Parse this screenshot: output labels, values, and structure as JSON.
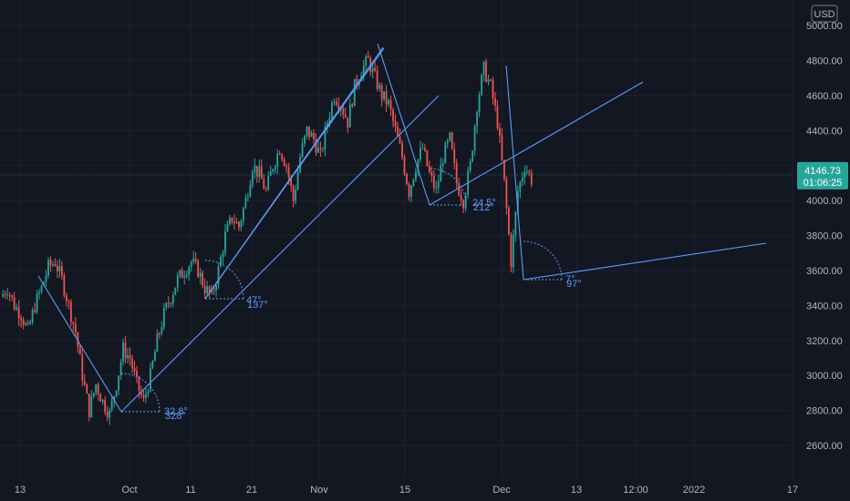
{
  "chart_data": {
    "type": "candlestick",
    "currency_badge": "USD",
    "price_axis": {
      "ticks": [
        "2600.00",
        "2800.00",
        "3000.00",
        "3200.00",
        "3400.00",
        "3600.00",
        "3800.00",
        "4000.00",
        "4200.00",
        "4400.00",
        "4600.00",
        "4800.00",
        "5000.00"
      ],
      "values": [
        2600,
        2800,
        3000,
        3200,
        3400,
        3600,
        3800,
        4000,
        4200,
        4400,
        4600,
        4800,
        5000
      ],
      "ylim": [
        2470,
        5060
      ]
    },
    "time_axis": {
      "labels": [
        "13",
        "Oct",
        "11",
        "21",
        "Nov",
        "15",
        "Dec",
        "13",
        "12:00",
        "2022",
        "17"
      ]
    },
    "last_price": {
      "value": 4146.73,
      "label": "4146.73",
      "countdown": "01:06:25",
      "color": "#26a69a"
    },
    "colors": {
      "background": "#131722",
      "up": "#26a69a",
      "down": "#ef5350",
      "drawing": "#5b9cf6",
      "axis_text": "#b2b5be"
    },
    "trend_angle_annotations": [
      {
        "label": "32.8°",
        "alt_label": "328°"
      },
      {
        "label": "47°",
        "alt_label": "137°"
      },
      {
        "label": "24.5°",
        "alt_label": "212°"
      },
      {
        "label": "7°",
        "alt_label": "97°"
      }
    ],
    "price_path": [
      [
        3450,
        0
      ],
      [
        3500,
        1
      ],
      [
        3400,
        2
      ],
      [
        3350,
        3
      ],
      [
        3250,
        4
      ],
      [
        3400,
        5
      ],
      [
        3500,
        6
      ],
      [
        3620,
        7
      ],
      [
        3650,
        8
      ],
      [
        3550,
        9
      ],
      [
        3400,
        10
      ],
      [
        3250,
        11
      ],
      [
        3000,
        12
      ],
      [
        2800,
        13
      ],
      [
        2950,
        14
      ],
      [
        2850,
        15
      ],
      [
        2780,
        16
      ],
      [
        2950,
        17
      ],
      [
        3150,
        18
      ],
      [
        3100,
        19
      ],
      [
        2950,
        20
      ],
      [
        2850,
        21
      ],
      [
        3000,
        22
      ],
      [
        3200,
        23
      ],
      [
        3350,
        24
      ],
      [
        3450,
        25
      ],
      [
        3550,
        26
      ],
      [
        3600,
        27
      ],
      [
        3650,
        28
      ],
      [
        3600,
        29
      ],
      [
        3500,
        30
      ],
      [
        3450,
        31
      ],
      [
        3600,
        32
      ],
      [
        3800,
        33
      ],
      [
        3900,
        34
      ],
      [
        3850,
        35
      ],
      [
        4000,
        36
      ],
      [
        4200,
        37
      ],
      [
        4150,
        38
      ],
      [
        4050,
        39
      ],
      [
        4200,
        40
      ],
      [
        4300,
        41
      ],
      [
        4200,
        42
      ],
      [
        4000,
        43
      ],
      [
        4250,
        44
      ],
      [
        4400,
        45
      ],
      [
        4350,
        46
      ],
      [
        4250,
        47
      ],
      [
        4450,
        48
      ],
      [
        4600,
        49
      ],
      [
        4550,
        50
      ],
      [
        4450,
        51
      ],
      [
        4650,
        52
      ],
      [
        4750,
        53
      ],
      [
        4800,
        54
      ],
      [
        4700,
        55
      ],
      [
        4600,
        56
      ],
      [
        4550,
        57
      ],
      [
        4400,
        58
      ],
      [
        4250,
        59
      ],
      [
        4050,
        60
      ],
      [
        4200,
        61
      ],
      [
        4300,
        62
      ],
      [
        4150,
        63
      ],
      [
        4050,
        64
      ],
      [
        4250,
        65
      ],
      [
        4350,
        66
      ],
      [
        4100,
        67
      ],
      [
        4000,
        68
      ],
      [
        4200,
        69
      ],
      [
        4550,
        70
      ],
      [
        4750,
        71
      ],
      [
        4650,
        72
      ],
      [
        4450,
        73
      ],
      [
        4100,
        74
      ],
      [
        3650,
        75
      ],
      [
        4050,
        76
      ],
      [
        4200,
        77
      ],
      [
        4120,
        78
      ]
    ]
  }
}
